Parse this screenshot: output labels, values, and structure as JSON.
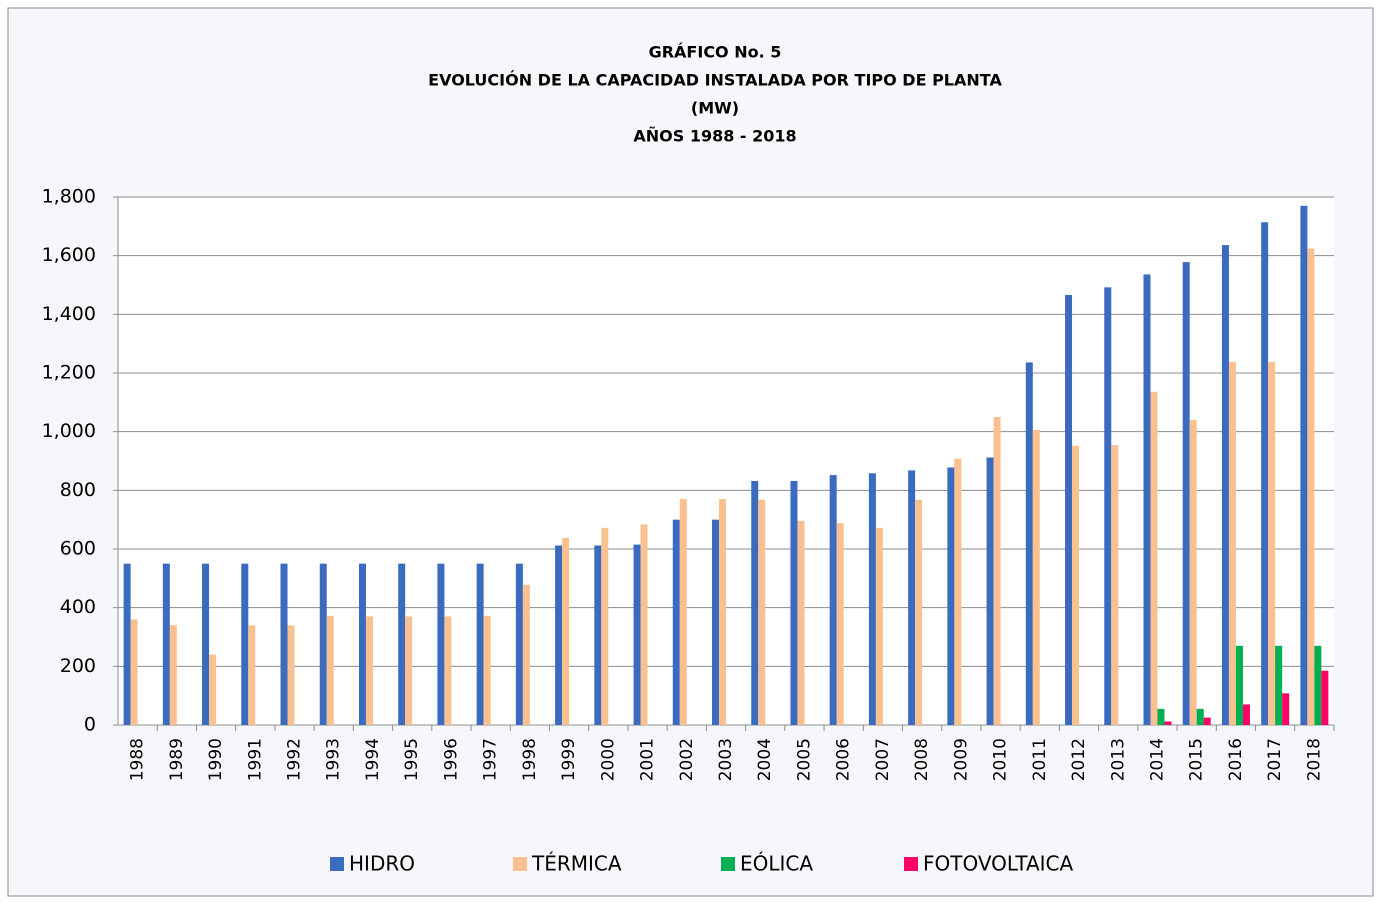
{
  "chart_data": {
    "type": "bar",
    "title": [
      "GRÁFICO No. 5",
      "EVOLUCIÓN DE LA CAPACIDAD INSTALADA POR TIPO DE PLANTA",
      "(MW)",
      "AÑOS  1988  - 2018"
    ],
    "categories": [
      "1988",
      "1989",
      "1990",
      "1991",
      "1992",
      "1993",
      "1994",
      "1995",
      "1996",
      "1997",
      "1998",
      "1999",
      "2000",
      "2001",
      "2002",
      "2003",
      "2004",
      "2005",
      "2006",
      "2007",
      "2008",
      "2009",
      "2010",
      "2011",
      "2012",
      "2013",
      "2014",
      "2015",
      "2016",
      "2017",
      "2018"
    ],
    "series": [
      {
        "name": "HIDRO",
        "color": "#3a6bbf",
        "values": [
          550,
          550,
          550,
          550,
          550,
          550,
          550,
          550,
          550,
          550,
          550,
          612,
          612,
          615,
          700,
          700,
          832,
          832,
          852,
          858,
          868,
          878,
          912,
          1236,
          1466,
          1492,
          1536,
          1578,
          1636,
          1714,
          1770
        ]
      },
      {
        "name": "TÉRMICA",
        "color": "#fac090",
        "values": [
          360,
          340,
          240,
          340,
          340,
          372,
          370,
          370,
          370,
          372,
          478,
          638,
          672,
          684,
          770,
          770,
          768,
          696,
          688,
          672,
          768,
          908,
          1050,
          1006,
          952,
          954,
          1136,
          1040,
          1238,
          1238,
          1624
        ]
      },
      {
        "name": "EÓLICA",
        "color": "#00b050",
        "values": [
          null,
          null,
          null,
          null,
          null,
          null,
          null,
          null,
          null,
          null,
          null,
          null,
          null,
          null,
          null,
          null,
          null,
          null,
          null,
          null,
          null,
          null,
          null,
          null,
          null,
          null,
          55,
          55,
          270,
          270,
          270
        ]
      },
      {
        "name": "FOTOVOLTAICA",
        "color": "#ff0066",
        "values": [
          null,
          null,
          null,
          null,
          null,
          null,
          null,
          null,
          null,
          null,
          null,
          null,
          null,
          null,
          null,
          null,
          null,
          null,
          null,
          null,
          null,
          null,
          null,
          null,
          null,
          null,
          12,
          25,
          70,
          108,
          185
        ]
      }
    ],
    "ylim": [
      0,
      1800
    ],
    "yticks": [
      0,
      200,
      400,
      600,
      800,
      {
        "value": 1000,
        "label": "1,000"
      },
      {
        "value": 1200,
        "label": "1,200"
      },
      {
        "value": 1400,
        "label": "1,400"
      },
      {
        "value": 1600,
        "label": "1,600"
      },
      {
        "value": 1800,
        "label": "1,800"
      }
    ],
    "grid": true,
    "legend": "bottom"
  }
}
